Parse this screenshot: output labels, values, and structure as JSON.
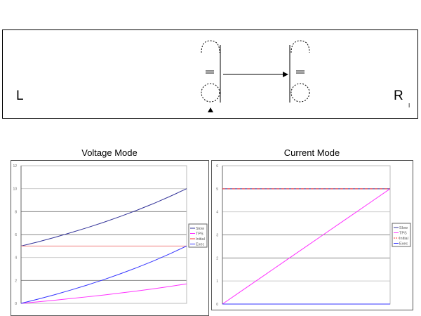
{
  "diagram": {
    "left_label": "L",
    "right_label": "R",
    "right_subscript": "I"
  },
  "colors": {
    "slow": "#333399",
    "tps": "#ff33ff",
    "initial": "#ff3333",
    "exec": "#3333ff"
  },
  "chart_data": [
    {
      "type": "line",
      "title": "Voltage Mode",
      "ylim": [
        0,
        12
      ],
      "yticks": [
        "0",
        "2",
        "4",
        "6",
        "8",
        "10",
        "12"
      ],
      "x": [
        0,
        1,
        2,
        3,
        4,
        5,
        6,
        7,
        8,
        9,
        10
      ],
      "legend": "right",
      "series": [
        {
          "name": "Slow",
          "values": [
            5,
            5.35,
            5.74,
            6.16,
            6.6,
            7.07,
            7.58,
            8.12,
            8.7,
            9.33,
            10
          ]
        },
        {
          "name": "TPS",
          "values": [
            0,
            0.13,
            0.27,
            0.42,
            0.57,
            0.73,
            0.9,
            1.08,
            1.27,
            1.48,
            1.7
          ]
        },
        {
          "name": "Initial",
          "values": [
            5,
            5,
            5,
            5,
            5,
            5,
            5,
            5,
            5,
            5,
            5
          ]
        },
        {
          "name": "Exec",
          "values": [
            0,
            0.36,
            0.74,
            1.16,
            1.6,
            2.07,
            2.58,
            3.12,
            3.7,
            4.33,
            5
          ]
        }
      ]
    },
    {
      "type": "line",
      "title": "Current Mode",
      "ylim": [
        0,
        6
      ],
      "yticks": [
        "0",
        "1",
        "2",
        "3",
        "4",
        "5",
        "6"
      ],
      "x": [
        0,
        1,
        2,
        3,
        4,
        5,
        6,
        7,
        8,
        9,
        10
      ],
      "legend": "right",
      "series": [
        {
          "name": "Slow",
          "values": [
            5,
            5,
            5,
            5,
            5,
            5,
            5,
            5,
            5,
            5,
            5
          ]
        },
        {
          "name": "TPS",
          "values": [
            0,
            0.5,
            1,
            1.5,
            2,
            2.5,
            3,
            3.5,
            4,
            4.5,
            5
          ]
        },
        {
          "name": "Initial",
          "values": [
            5,
            5,
            5,
            5,
            5,
            5,
            5,
            5,
            5,
            5,
            5
          ]
        },
        {
          "name": "Exec",
          "values": [
            0,
            0,
            0,
            0,
            0,
            0,
            0,
            0,
            0,
            0,
            0
          ]
        }
      ]
    }
  ]
}
